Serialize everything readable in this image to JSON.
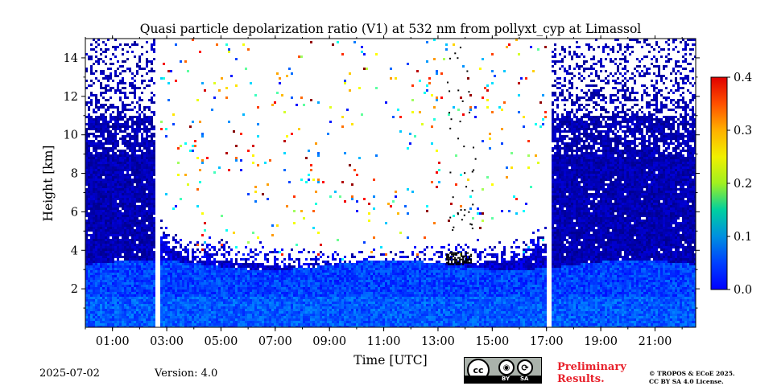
{
  "chart_data": {
    "type": "heatmap",
    "title": "Quasi particle depolarization ratio (V1) at 532 nm from pollyxt_cyp at Limassol",
    "xlabel": "Time [UTC]",
    "ylabel": "Height [km]",
    "x_range_hours": [
      0.0,
      22.5
    ],
    "ylim": [
      0,
      15
    ],
    "x_ticks": [
      {
        "hour": 1,
        "label": "01:00"
      },
      {
        "hour": 3,
        "label": "03:00"
      },
      {
        "hour": 5,
        "label": "05:00"
      },
      {
        "hour": 7,
        "label": "07:00"
      },
      {
        "hour": 9,
        "label": "09:00"
      },
      {
        "hour": 11,
        "label": "11:00"
      },
      {
        "hour": 13,
        "label": "13:00"
      },
      {
        "hour": 15,
        "label": "15:00"
      },
      {
        "hour": 17,
        "label": "17:00"
      },
      {
        "hour": 19,
        "label": "19:00"
      },
      {
        "hour": 21,
        "label": "21:00"
      }
    ],
    "y_ticks": [
      {
        "value": 2,
        "label": "2"
      },
      {
        "value": 4,
        "label": "4"
      },
      {
        "value": 6,
        "label": "6"
      },
      {
        "value": 8,
        "label": "8"
      },
      {
        "value": 10,
        "label": "10"
      },
      {
        "value": 12,
        "label": "12"
      },
      {
        "value": 14,
        "label": "14"
      }
    ],
    "colorbar": {
      "range": [
        0.0,
        0.4
      ],
      "colormap": "jet",
      "ticks": [
        {
          "value": 0.0,
          "label": "0.0"
        },
        {
          "value": 0.1,
          "label": "0.1"
        },
        {
          "value": 0.2,
          "label": "0.2"
        },
        {
          "value": 0.3,
          "label": "0.3"
        },
        {
          "value": 0.4,
          "label": "0.4"
        }
      ]
    },
    "data_gaps_hours": [
      [
        2.55,
        2.72
      ],
      [
        16.95,
        17.12
      ]
    ],
    "signal_top_profile_km": [
      [
        0.0,
        14.9
      ],
      [
        2.6,
        14.9
      ],
      [
        2.7,
        4.5
      ],
      [
        4.0,
        3.6
      ],
      [
        7.0,
        3.3
      ],
      [
        10.0,
        2.9
      ],
      [
        13.0,
        3.3
      ],
      [
        16.0,
        3.6
      ],
      [
        17.1,
        4.5
      ],
      [
        17.2,
        14.9
      ],
      [
        22.5,
        14.9
      ]
    ],
    "cloud": {
      "hour_range": [
        13.3,
        14.2
      ],
      "height_km": [
        3.3,
        3.9
      ]
    }
  },
  "footer": {
    "date": "2025-07-02",
    "version": "Version: 4.0",
    "preliminary_line1": "Preliminary",
    "preliminary_line2": "Results.",
    "copyright_line1": "© TROPOS & ECoE 2025.",
    "copyright_line2": "CC BY SA 4.0 License.",
    "license_by": "BY",
    "license_sa": "SA",
    "license_cc": "cc"
  }
}
